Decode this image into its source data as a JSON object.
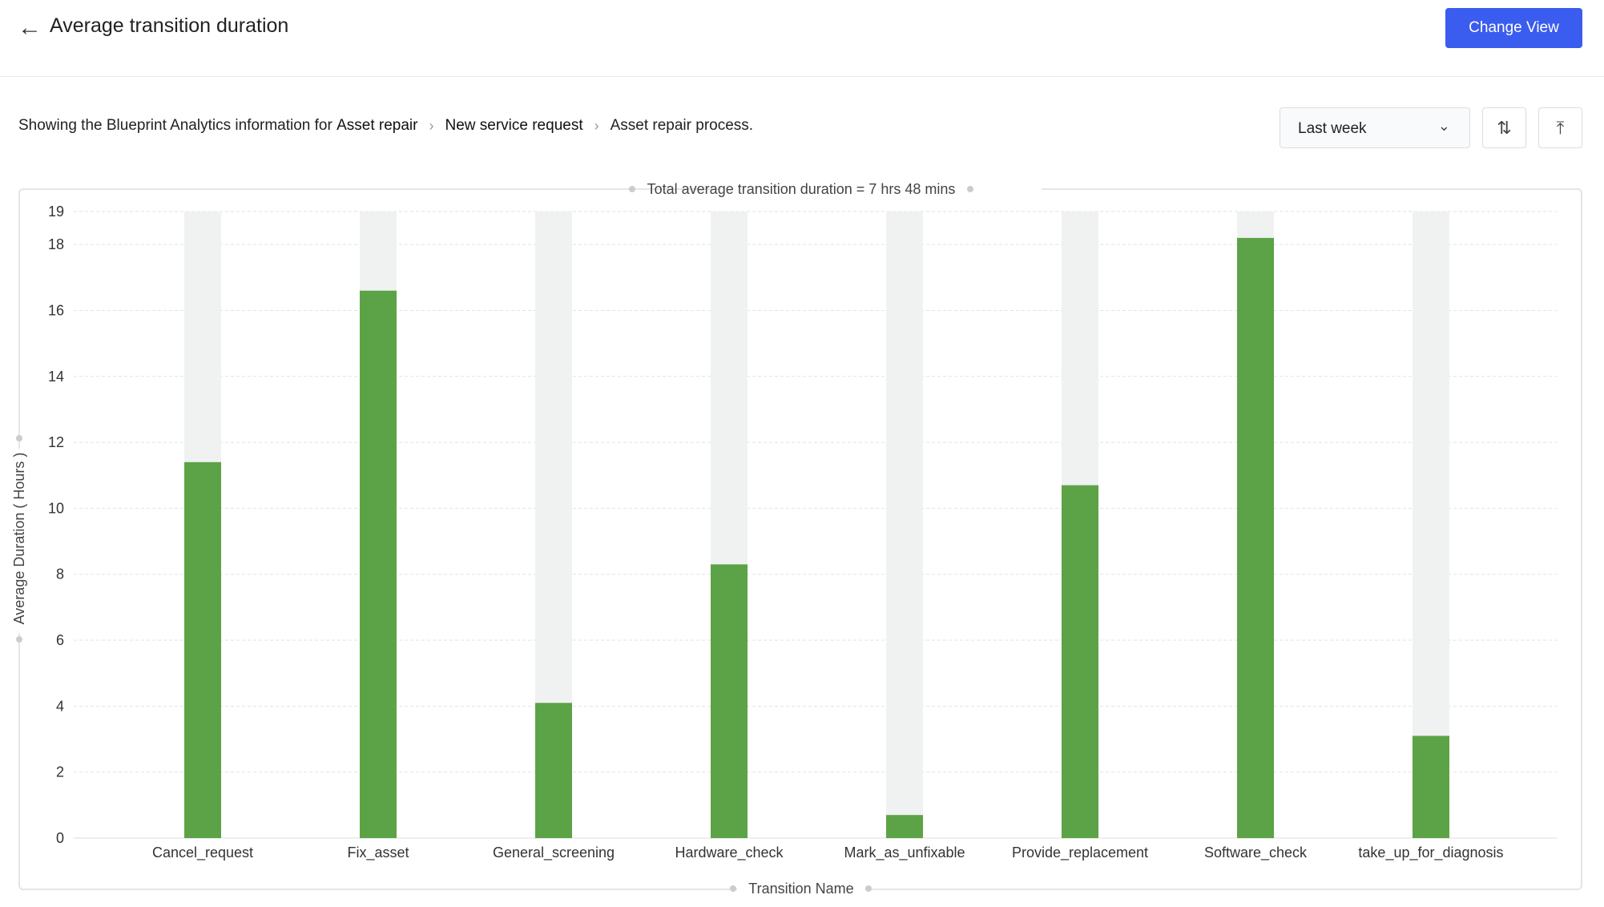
{
  "header": {
    "title": "Average transition duration",
    "back_icon": "arrow-left-icon",
    "change_view_label": "Change View"
  },
  "breadcrumb": {
    "prefix": "Showing the Blueprint Analytics information for",
    "items": [
      "Asset repair",
      "New service request",
      "Asset repair process."
    ]
  },
  "filters": {
    "period": "Last week",
    "sort_icon": "sort-arrows-icon",
    "export_icon": "upload-top-icon"
  },
  "colors": {
    "bar": "#5ba346",
    "track": "#f0f1f1",
    "accent": "#3a5cef"
  },
  "chart_data": {
    "type": "bar",
    "title": "Total average transition duration = 7 hrs 48 mins",
    "xlabel": "Transition Name",
    "ylabel": "Average Duration ( Hours )",
    "ylim": [
      0,
      19
    ],
    "yticks": [
      0,
      2,
      4,
      6,
      8,
      10,
      12,
      14,
      16,
      18,
      19
    ],
    "categories": [
      "Cancel_request",
      "Fix_asset",
      "General_screening",
      "Hardware_check",
      "Mark_as_unfixable",
      "Provide_replacement",
      "Software_check",
      "take_up_for_diagnosis"
    ],
    "values": [
      11.4,
      16.6,
      4.1,
      8.3,
      0.7,
      10.7,
      18.2,
      3.1
    ],
    "grid": true
  }
}
